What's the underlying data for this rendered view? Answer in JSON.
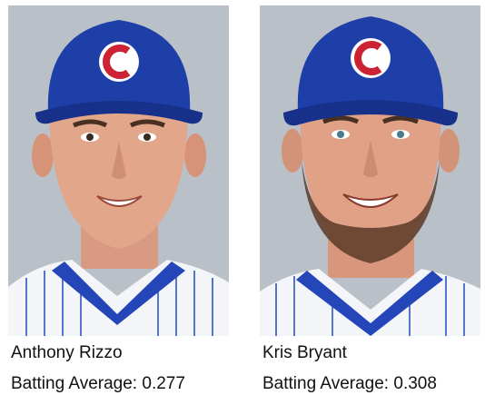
{
  "players": [
    {
      "name": "Anthony Rizzo",
      "stat_label": "Batting Average:",
      "stat_value": "0.277",
      "cap_logo": "C",
      "has_beard": false
    },
    {
      "name": "Kris Bryant",
      "stat_label": "Batting Average:",
      "stat_value": "0.308",
      "cap_logo": "C",
      "has_beard": true
    }
  ],
  "colors": {
    "cap_blue": "#1f3fa8",
    "logo_red": "#cc2233",
    "jersey_stripe": "#3a5fc4",
    "background_gray": "#b7bec6"
  }
}
